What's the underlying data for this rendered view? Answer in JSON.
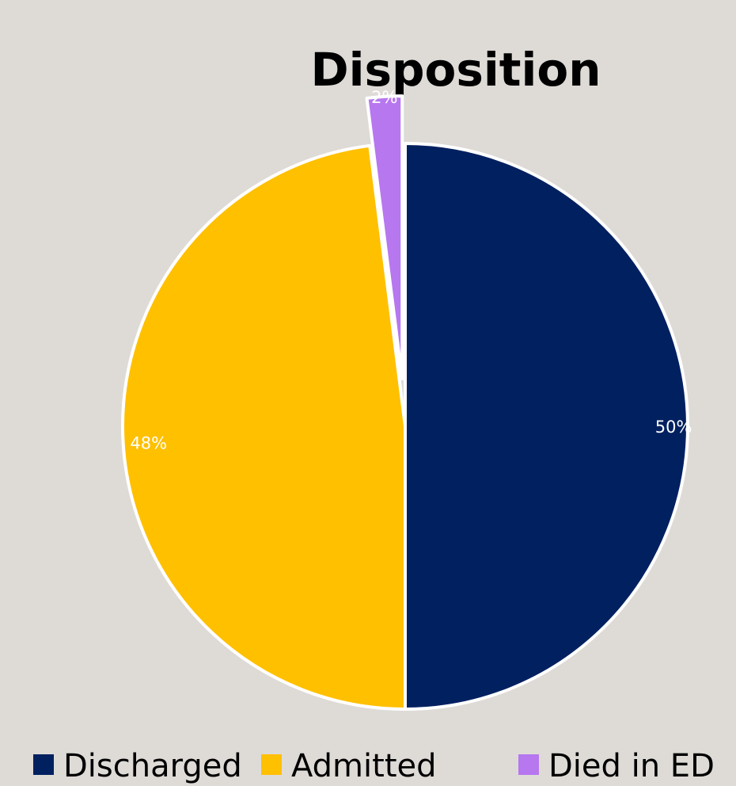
{
  "chart_data": {
    "type": "pie",
    "title": "Disposition",
    "categories": [
      "Discharged",
      "Admitted",
      "Died in ED"
    ],
    "values": [
      50,
      48,
      2
    ],
    "data_labels": [
      "50%",
      "48%",
      "2%"
    ],
    "colors": [
      "#002060",
      "#ffc000",
      "#b777ef"
    ],
    "legend_placement": "bottom",
    "exploded": "Died in ED"
  }
}
